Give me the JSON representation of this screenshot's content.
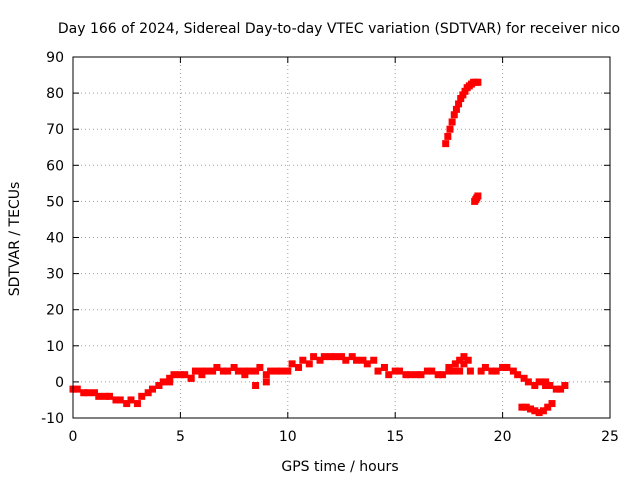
{
  "chart_data": {
    "type": "scatter",
    "title": "Day 166 of 2024, Sidereal Day-to-day VTEC variation (SDTVAR) for receiver nico",
    "xlabel": "GPS time / hours",
    "ylabel": "SDTVAR / TECUs",
    "xlim": [
      0,
      25
    ],
    "ylim": [
      -10,
      90
    ],
    "xticks": [
      "0",
      "5",
      "10",
      "15",
      "20",
      "25"
    ],
    "yticks": [
      "-10",
      "0",
      "10",
      "20",
      "30",
      "40",
      "50",
      "60",
      "70",
      "80",
      "90"
    ],
    "grid": true,
    "color": "#ff0000",
    "series": [
      {
        "name": "SDTVAR",
        "x": [
          0.0,
          0.5,
          1.0,
          1.5,
          2.0,
          2.5,
          3.0,
          3.5,
          4.0,
          4.5,
          5.0,
          5.5,
          6.0,
          6.5,
          7.0,
          7.5,
          8.0,
          8.5,
          9.0,
          9.5,
          10.0,
          10.5,
          11.0,
          11.5,
          12.0,
          12.5,
          13.0,
          13.5,
          14.0,
          14.5,
          15.0,
          15.5,
          16.0,
          16.5,
          17.0,
          17.5,
          18.0,
          18.5,
          19.0,
          19.5,
          20.0,
          20.5,
          21.0,
          21.5,
          22.0,
          22.5,
          22.9,
          0.2,
          0.7,
          1.2,
          1.7,
          2.2,
          2.7,
          3.2,
          3.7,
          4.2,
          4.7,
          5.2,
          5.7,
          6.2,
          6.7,
          7.2,
          7.7,
          8.2,
          8.7,
          9.2,
          9.7,
          10.2,
          10.7,
          11.2,
          11.7,
          12.2,
          12.7,
          13.2,
          13.7,
          14.2,
          14.7,
          15.2,
          15.7,
          16.2,
          16.7,
          17.2,
          17.7,
          18.2,
          19.2,
          19.7,
          20.2,
          20.7,
          21.2,
          21.7,
          22.2,
          22.7,
          4.0,
          4.5,
          5.5,
          6.0,
          8.0,
          8.5,
          9.0,
          17.5,
          17.8,
          18.0,
          18.2,
          18.4,
          22.0,
          17.35,
          17.45,
          17.55,
          17.65,
          17.75,
          17.85,
          17.95,
          18.05,
          18.15,
          18.25,
          18.35,
          18.45,
          18.55,
          18.65,
          18.75,
          18.85,
          18.7,
          18.75,
          18.8,
          18.85,
          20.9,
          21.1,
          21.3,
          21.5,
          21.7,
          21.9,
          22.1,
          22.3
        ],
        "y": [
          -2,
          -3,
          -3,
          -4,
          -5,
          -6,
          -6,
          -3,
          -1,
          1,
          2,
          1,
          2,
          3,
          3,
          4,
          3,
          3,
          2,
          3,
          3,
          4,
          5,
          6,
          7,
          7,
          7,
          6,
          6,
          4,
          3,
          2,
          2,
          3,
          2,
          3,
          3,
          3,
          3,
          3,
          4,
          3,
          1,
          -1,
          -1,
          -2,
          -1,
          -2,
          -3,
          -4,
          -4,
          -5,
          -5,
          -4,
          -2,
          0,
          2,
          2,
          3,
          3,
          4,
          3,
          3,
          3,
          4,
          3,
          3,
          5,
          6,
          7,
          7,
          7,
          6,
          6,
          5,
          3,
          2,
          3,
          2,
          2,
          3,
          2,
          3,
          5,
          4,
          3,
          4,
          2,
          0,
          0,
          -1,
          -2,
          -1,
          0,
          1,
          3,
          2,
          -1,
          0,
          4,
          5,
          6,
          7,
          6,
          0,
          66,
          68,
          70,
          72,
          74,
          75.5,
          77,
          78.5,
          79.5,
          80.5,
          81.5,
          82,
          82.5,
          83,
          83,
          83,
          50,
          50.5,
          51,
          51.5,
          -7,
          -7,
          -7.5,
          -8,
          -8.5,
          -8,
          -7,
          -6
        ]
      }
    ]
  }
}
